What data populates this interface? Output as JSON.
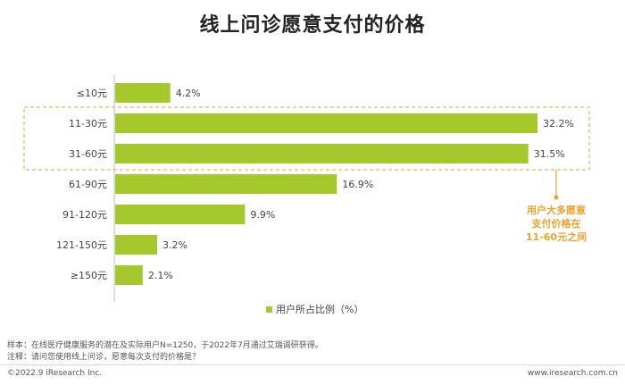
{
  "chart_data": {
    "type": "bar",
    "orientation": "horizontal",
    "title": "线上问诊愿意支付的价格",
    "categories": [
      "≤10元",
      "11-30元",
      "31-60元",
      "61-90元",
      "91-120元",
      "121-150元",
      "≥150元"
    ],
    "values": [
      4.2,
      32.2,
      31.5,
      16.9,
      9.9,
      3.2,
      2.1
    ],
    "value_labels": [
      "4.2%",
      "32.2%",
      "31.5%",
      "16.9%",
      "9.9%",
      "3.2%",
      "2.1%"
    ],
    "legend": "用户所占比例（%）",
    "legend_position": "bottom-center",
    "bar_color": "#a5c92d",
    "highlight_color": "#f0a12b",
    "highlight_categories": [
      "11-30元",
      "31-60元"
    ],
    "annotation": [
      "用户大多愿意",
      "支付价格在",
      "11-60元之间"
    ]
  },
  "notes": {
    "sample": "样本：在线医疗健康服务的潜在及实际用户N=1250，于2022年7月通过艾瑞调研获得。",
    "remark": "注释：请问您使用线上问诊，愿意每次支付的价格是？"
  },
  "footer": {
    "copyright": "©2022.9 iResearch Inc.",
    "website": "www.iresearch.com.cn"
  }
}
